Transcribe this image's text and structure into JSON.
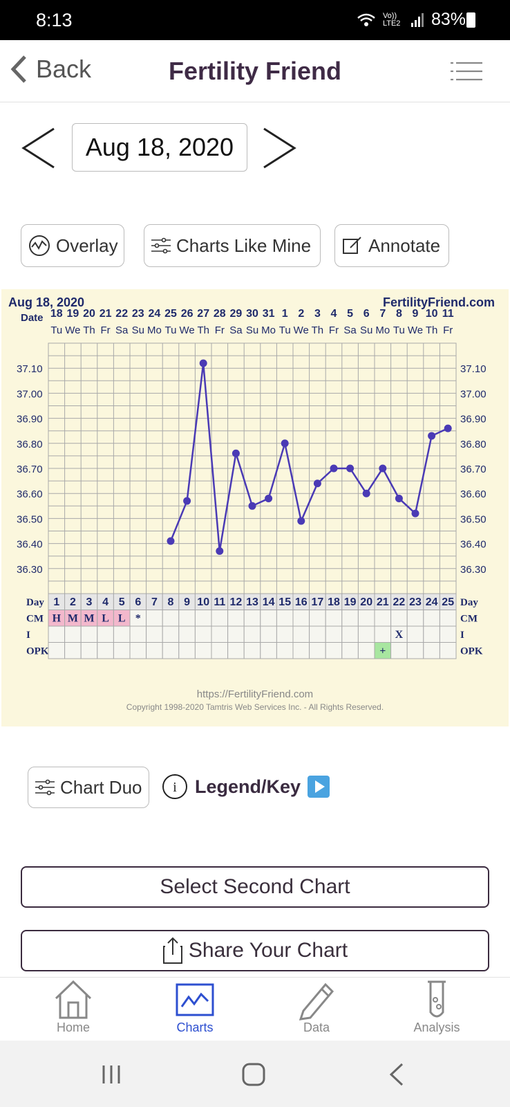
{
  "status": {
    "time": "8:13",
    "signal_label": "Vo)) LTE2",
    "battery": "83%"
  },
  "header": {
    "back_label": "Back",
    "title": "Fertility Friend"
  },
  "date_nav": {
    "date": "Aug 18, 2020"
  },
  "actions": {
    "overlay": "Overlay",
    "charts_like_mine": "Charts Like Mine",
    "annotate": "Annotate"
  },
  "chart_data": {
    "type": "line",
    "title": "Aug 18, 2020",
    "brand": "FertilityFriend.com",
    "date_label": "Date",
    "dates": [
      "18",
      "19",
      "20",
      "21",
      "22",
      "23",
      "24",
      "25",
      "26",
      "27",
      "28",
      "29",
      "30",
      "31",
      "1",
      "2",
      "3",
      "4",
      "5",
      "6",
      "7",
      "8",
      "9",
      "10",
      "11"
    ],
    "weekdays": [
      "Tu",
      "We",
      "Th",
      "Fr",
      "Sa",
      "Su",
      "Mo",
      "Tu",
      "We",
      "Th",
      "Fr",
      "Sa",
      "Su",
      "Mo",
      "Tu",
      "We",
      "Th",
      "Fr",
      "Sa",
      "Su",
      "Mo",
      "Tu",
      "We",
      "Th",
      "Fr"
    ],
    "y_ticks": [
      "37.10",
      "37.00",
      "36.90",
      "36.80",
      "36.70",
      "36.60",
      "36.50",
      "36.40",
      "36.30"
    ],
    "ylim": [
      36.2,
      37.2
    ],
    "series": [
      {
        "color": "#4a3ab5",
        "x": [
          8,
          9,
          10,
          11,
          12,
          13,
          14,
          15,
          16,
          17,
          18,
          19,
          20,
          21,
          22,
          23,
          24,
          25
        ],
        "values": [
          36.41,
          36.57,
          37.12,
          36.37,
          36.76,
          36.55,
          36.58,
          36.8,
          36.49,
          36.64,
          36.7,
          36.7,
          36.6,
          36.7,
          36.58,
          36.52,
          36.83,
          36.86
        ]
      }
    ],
    "day_label": "Day",
    "days": [
      "1",
      "2",
      "3",
      "4",
      "5",
      "6",
      "7",
      "8",
      "9",
      "10",
      "11",
      "12",
      "13",
      "14",
      "15",
      "16",
      "17",
      "18",
      "19",
      "20",
      "21",
      "22",
      "23",
      "24",
      "25"
    ],
    "cm_label": "CM",
    "cm": [
      "H",
      "M",
      "M",
      "L",
      "L",
      "*",
      "",
      "",
      "",
      "",
      "",
      "",
      "",
      "",
      "",
      "",
      "",
      "",
      "",
      "",
      "",
      "",
      "",
      "",
      ""
    ],
    "i_label": "I",
    "intercourse": [
      "",
      "",
      "",
      "",
      "",
      "",
      "",
      "",
      "",
      "",
      "",
      "",
      "",
      "",
      "",
      "",
      "",
      "",
      "",
      "",
      "",
      "X",
      "",
      "",
      ""
    ],
    "opk_label": "OPK",
    "opk": [
      "",
      "",
      "",
      "",
      "",
      "",
      "",
      "",
      "",
      "",
      "",
      "",
      "",
      "",
      "",
      "",
      "",
      "",
      "",
      "",
      "+",
      "",
      "",
      "",
      ""
    ],
    "footer_url": "https://FertilityFriend.com",
    "copyright": "Copyright 1998-2020 Tamtris Web Services Inc. - All Rights Reserved.",
    "colors": {
      "background": "#fbf7dd",
      "grid": "#a9a9a9",
      "line": "#4a3ab5",
      "cm_fill": "#f3b8cc",
      "opk_fill": "#a8e6a0"
    }
  },
  "chart_duo": {
    "label": "Chart Duo",
    "legend": "Legend/Key"
  },
  "buttons": {
    "select_second": "Select Second Chart",
    "share": "Share Your Chart"
  },
  "bottom_nav": [
    {
      "label": "Home",
      "icon": "home-icon"
    },
    {
      "label": "Charts",
      "icon": "chart-icon",
      "active": true
    },
    {
      "label": "Data",
      "icon": "pencil-icon"
    },
    {
      "label": "Analysis",
      "icon": "test-tube-icon"
    }
  ]
}
